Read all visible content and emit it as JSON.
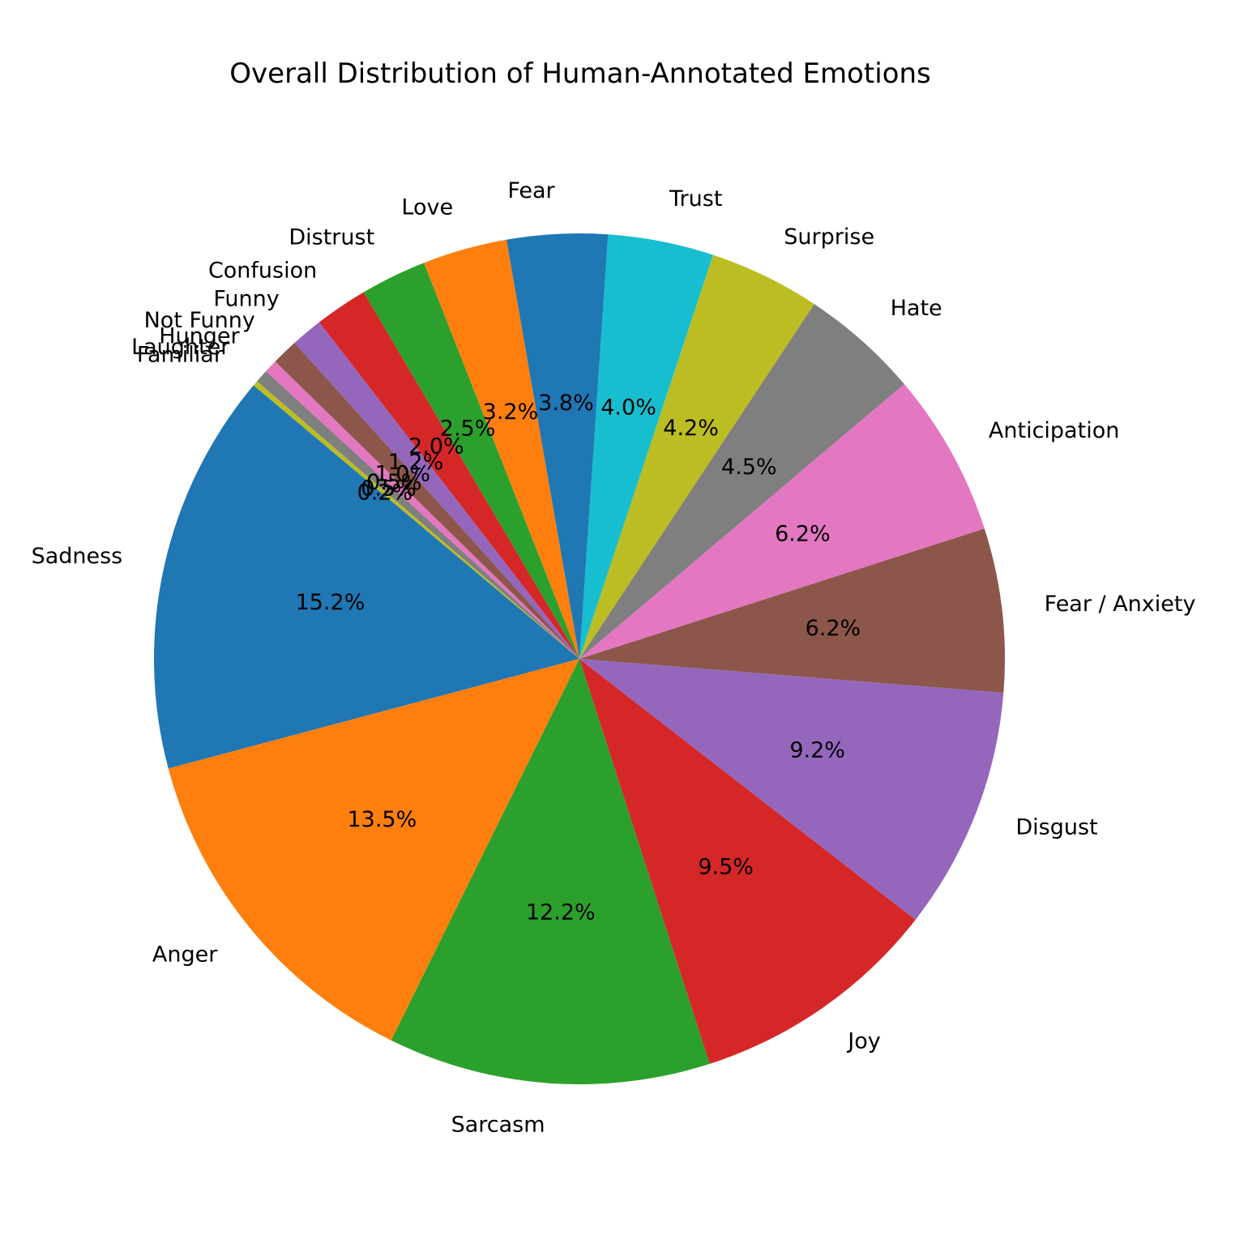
{
  "chart_data": {
    "type": "pie",
    "title": "Overall Distribution of Human-Annotated Emotions",
    "start_angle_deg": 140,
    "direction": "counterclockwise",
    "slices": [
      {
        "label": "Sadness",
        "value": 15.2,
        "pct_label": "15.2%",
        "color": "#1f77b4"
      },
      {
        "label": "Anger",
        "value": 13.5,
        "pct_label": "13.5%",
        "color": "#ff7f0e"
      },
      {
        "label": "Sarcasm",
        "value": 12.2,
        "pct_label": "12.2%",
        "color": "#2ca02c"
      },
      {
        "label": "Joy",
        "value": 9.5,
        "pct_label": "9.5%",
        "color": "#d62728"
      },
      {
        "label": "Disgust",
        "value": 9.2,
        "pct_label": "9.2%",
        "color": "#9467bd"
      },
      {
        "label": "Fear / Anxiety",
        "value": 6.2,
        "pct_label": "6.2%",
        "color": "#8c564b"
      },
      {
        "label": "Anticipation",
        "value": 6.2,
        "pct_label": "6.2%",
        "color": "#e377c2"
      },
      {
        "label": "Hate",
        "value": 4.5,
        "pct_label": "4.5%",
        "color": "#7f7f7f"
      },
      {
        "label": "Surprise",
        "value": 4.2,
        "pct_label": "4.2%",
        "color": "#bcbd22"
      },
      {
        "label": "Trust",
        "value": 4.0,
        "pct_label": "4.0%",
        "color": "#17becf"
      },
      {
        "label": "Fear",
        "value": 3.8,
        "pct_label": "3.8%",
        "color": "#1f77b4"
      },
      {
        "label": "Love",
        "value": 3.2,
        "pct_label": "3.2%",
        "color": "#ff7f0e"
      },
      {
        "label": "Distrust",
        "value": 2.5,
        "pct_label": "2.5%",
        "color": "#2ca02c"
      },
      {
        "label": "Confusion",
        "value": 2.0,
        "pct_label": "2.0%",
        "color": "#d62728"
      },
      {
        "label": "Funny",
        "value": 1.2,
        "pct_label": "1.2%",
        "color": "#9467bd"
      },
      {
        "label": "Not Funny",
        "value": 1.0,
        "pct_label": "1.0%",
        "color": "#8c564b"
      },
      {
        "label": "Hunger",
        "value": 0.5,
        "pct_label": "0.5%",
        "color": "#e377c2"
      },
      {
        "label": "Laughter",
        "value": 0.5,
        "pct_label": "0.5%",
        "color": "#7f7f7f"
      },
      {
        "label": "Familiar",
        "value": 0.2,
        "pct_label": "0.2%",
        "color": "#bcbd22"
      }
    ]
  }
}
